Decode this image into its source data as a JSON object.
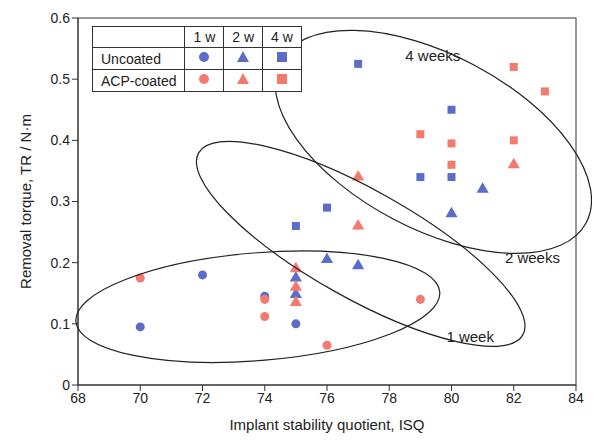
{
  "chart_data": {
    "type": "scatter",
    "x_label": "Implant stability quotient, ISQ",
    "y_label": "Removal torque, TR / N·m",
    "xlim": [
      68,
      84
    ],
    "xticks": [
      68,
      70,
      72,
      74,
      76,
      78,
      80,
      82,
      84
    ],
    "ylim": [
      0,
      0.6
    ],
    "yticks": [
      0,
      0.1,
      0.2,
      0.3,
      0.4,
      0.5,
      0.6
    ],
    "legend": "upper left",
    "legend_rows": [
      "Uncoated",
      "ACP-coated"
    ],
    "legend_columns": [
      "1 w",
      "2 w",
      "4 w"
    ],
    "series": [
      {
        "name": "Uncoated",
        "period": "1 w",
        "color": "#5b6dc8",
        "marker": "circle",
        "x": [
          70,
          72,
          74,
          75
        ],
        "values": [
          0.095,
          0.18,
          0.145,
          0.1
        ]
      },
      {
        "name": "ACP-coated",
        "period": "1 w",
        "color": "#f47a70",
        "marker": "circle",
        "x": [
          70,
          74,
          74,
          76,
          79
        ],
        "values": [
          0.175,
          0.14,
          0.112,
          0.065,
          0.14
        ]
      },
      {
        "name": "Uncoated",
        "period": "2 w",
        "color": "#5b6dc8",
        "marker": "triangle",
        "x": [
          75,
          75,
          76,
          77,
          80,
          81
        ],
        "values": [
          0.175,
          0.148,
          0.205,
          0.195,
          0.28,
          0.32
        ]
      },
      {
        "name": "ACP-coated",
        "period": "2 w",
        "color": "#f47a70",
        "marker": "triangle",
        "x": [
          75,
          75,
          75,
          77,
          77,
          82
        ],
        "values": [
          0.19,
          0.16,
          0.135,
          0.34,
          0.26,
          0.36
        ]
      },
      {
        "name": "Uncoated",
        "period": "4 w",
        "color": "#5b6dc8",
        "marker": "square",
        "x": [
          75,
          76,
          77,
          79,
          80,
          80
        ],
        "values": [
          0.26,
          0.29,
          0.525,
          0.34,
          0.45,
          0.34
        ]
      },
      {
        "name": "ACP-coated",
        "period": "4 w",
        "color": "#f47a70",
        "marker": "square",
        "x": [
          79,
          80,
          80,
          82,
          82,
          83
        ],
        "values": [
          0.41,
          0.395,
          0.36,
          0.52,
          0.4,
          0.48
        ]
      }
    ],
    "annotations": [
      {
        "text": "1 week",
        "period": "1 w",
        "x": 80.6,
        "y": 0.07
      },
      {
        "text": "2 weeks",
        "period": "2 w",
        "x": 82.6,
        "y": 0.2
      },
      {
        "text": "4 weeks",
        "period": "4 w",
        "x": 79.4,
        "y": 0.53
      }
    ]
  }
}
